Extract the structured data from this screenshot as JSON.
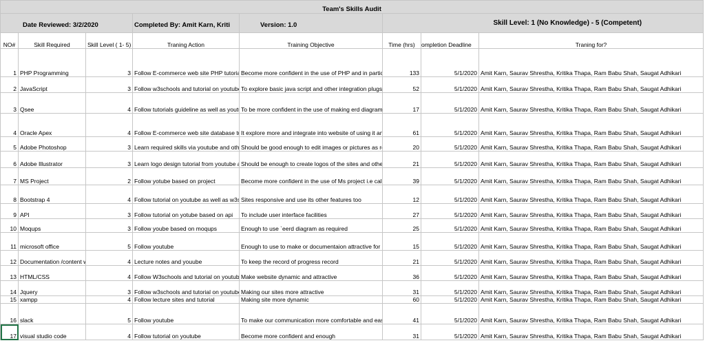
{
  "sheet": {
    "title": "Team's Skills Audit",
    "date_reviewed": "Date Reviewed: 3/2/2020",
    "completed_by": "Completed By: Amit Karn, Kriti",
    "version": "Version: 1.0",
    "skill_level_legend": "Skill Level: 1 (No Knowledge) - 5 (Competent)"
  },
  "columns": {
    "no": "NO#",
    "skill": "Skill Required",
    "level": "Skill Level ( 1- 5)",
    "action": "Traning Action",
    "objective": "Training Objective",
    "time": "Time (hrs)",
    "deadline": "ompletion Deadline",
    "for": "Traning for?"
  },
  "rows": [
    {
      "no": "1",
      "skill": "PHP Programming",
      "level": "3",
      "action": "Follow E-commerce web site PHP tutorial on Youtube",
      "objective": "Become more confident in the use of PHP and in particular in the building of shopping carts",
      "time": "133",
      "deadline": "5/1/2020",
      "for": "Amit Karn, Saurav Shrestha, Kritika Thapa, Ram Babu Shah, Saugat Adhikari"
    },
    {
      "no": "2",
      "skill": "JavaScript",
      "level": "3",
      "action": "Follow w3schools and tutorial on youtube",
      "objective": "To explore basic java script and other integration plugs",
      "time": "52",
      "deadline": "5/1/2020",
      "for": "Amit Karn, Saurav Shrestha, Kritika Thapa, Ram Babu Shah, Saugat Adhikari"
    },
    {
      "no": "3",
      "skill": "Qsee",
      "level": "4",
      "action": "Follow tutorials guideline as well as youtube tutorial",
      "objective": "To be more confident in the use of making erd diagrams",
      "time": "17",
      "deadline": "5/1/2020",
      "for": "Amit Karn, Saurav Shrestha, Kritika Thapa, Ram Babu Shah, Saugat Adhikari"
    },
    {
      "no": "4",
      "skill": "Oracle Apex",
      "level": "4",
      "action": "Follow E-commerce web site database tutorial on Youtube and learning materials from VLE",
      "objective": "It explore more and integrate into website of using it and make more dynamic",
      "time": "61",
      "deadline": "5/1/2020",
      "for": "Amit Karn, Saurav Shrestha, Kritika Thapa, Ram Babu Shah, Saugat Adhikari"
    },
    {
      "no": "5",
      "skill": "Adobe Photoshop",
      "level": "3",
      "action": "Learn required skills via youtube and other learning sites and articles",
      "objective": "Should be good enough to edit images or pictures as required",
      "time": "20",
      "deadline": "5/1/2020",
      "for": "Amit Karn, Saurav Shrestha, Kritika Thapa, Ram Babu Shah, Saugat Adhikari"
    },
    {
      "no": "6",
      "skill": "Adobe Illustrator",
      "level": "3",
      "action": "Learn logo design tutorial from youtube and other illustrator sites",
      "objective": "Should be enough to create logos of the sites and other designs required in the sites",
      "time": "21",
      "deadline": "5/1/2020",
      "for": "Amit Karn, Saurav Shrestha, Kritika Thapa, Ram Babu Shah, Saugat Adhikari"
    },
    {
      "no": "7",
      "skill": "MS Project",
      "level": "2",
      "action": "Follow yotube based on project",
      "objective": "Become more confident in the use of Ms project i.e calendar,timeline,gattcharts",
      "time": "39",
      "deadline": "5/1/2020",
      "for": "Amit Karn, Saurav Shrestha, Kritika Thapa, Ram Babu Shah, Saugat Adhikari"
    },
    {
      "no": "8",
      "skill": "Bootstrap 4",
      "level": "4",
      "action": "Follow tutorial on youtube as well as w3school",
      "objective": "Sites responsive and use its other features too",
      "time": "12",
      "deadline": "5/1/2020",
      "for": "Amit Karn, Saurav Shrestha, Kritika Thapa, Ram Babu Shah, Saugat Adhikari"
    },
    {
      "no": "9",
      "skill": "API",
      "level": "3",
      "action": "Follow tutorial on yotube based on api",
      "objective": "To include user interface facilities",
      "time": "27",
      "deadline": "5/1/2020",
      "for": "Amit Karn, Saurav Shrestha, Kritika Thapa, Ram Babu Shah, Saugat Adhikari"
    },
    {
      "no": "10",
      "skill": "Moqups",
      "level": "3",
      "action": "Follow yoube based on moqups",
      "objective": "Enough to use `eerd diagram as required",
      "time": "25",
      "deadline": "5/1/2020",
      "for": "Amit Karn, Saurav Shrestha, Kritika Thapa, Ram Babu Shah, Saugat Adhikari"
    },
    {
      "no": "11",
      "skill": "microsoft office",
      "level": "5",
      "action": "Follow youtube",
      "objective": "Enough to use to make or documentaion attractive for customers",
      "time": "15",
      "deadline": "5/1/2020",
      "for": "Amit Karn, Saurav Shrestha, Kritika Thapa, Ram Babu Shah, Saugat Adhikari"
    },
    {
      "no": "12",
      "skill": "Documentation /content writing",
      "level": "4",
      "action": "Lecture notes and youube",
      "objective": "To keep the record of progress record",
      "time": "21",
      "deadline": "5/1/2020",
      "for": "Amit Karn, Saurav Shrestha, Kritika Thapa, Ram Babu Shah, Saugat Adhikari"
    },
    {
      "no": "13",
      "skill": "HTML/CSS",
      "level": "4",
      "action": "Follow W3schools and tutorial on youtube",
      "objective": "Make website dynamic and attractive",
      "time": "36",
      "deadline": "5/1/2020",
      "for": "Amit Karn, Saurav Shrestha, Kritika Thapa, Ram Babu Shah, Saugat Adhikari"
    },
    {
      "no": "14",
      "skill": "Jquery",
      "level": "3",
      "action": "Follow w3schools and tutorial on youtube",
      "objective": "Making our sites more attractive",
      "time": "31",
      "deadline": "5/1/2020",
      "for": "Amit Karn, Saurav Shrestha, Kritika Thapa, Ram Babu Shah, Saugat Adhikari"
    },
    {
      "no": "15",
      "skill": "xampp",
      "level": "4",
      "action": "Follow lecture sites and tutorial",
      "objective": "Making site more dynamic",
      "time": "60",
      "deadline": "5/1/2020",
      "for": "Amit Karn, Saurav Shrestha, Kritika Thapa, Ram Babu Shah, Saugat Adhikari"
    },
    {
      "no": "16",
      "skill": "slack",
      "level": "5",
      "action": "Follow youtube",
      "objective": "To make our communication more comfortable and easy",
      "time": "41",
      "deadline": "5/1/2020",
      "for": "Amit Karn, Saurav Shrestha, Kritika Thapa, Ram Babu Shah, Saugat Adhikari"
    },
    {
      "no": "17",
      "skill": "visual studio code",
      "level": "4",
      "action": "Follow tutorial on youtube",
      "objective": "Become more confident and enough",
      "time": "31",
      "deadline": "5/1/2020",
      "for": "Amit Karn, Saurav Shrestha, Kritika Thapa, Ram Babu Shah, Saugat Adhikari"
    }
  ],
  "colors": {
    "header_fill": "#d9d9d9",
    "gridline": "#c6c6c6",
    "selection": "#217346"
  }
}
